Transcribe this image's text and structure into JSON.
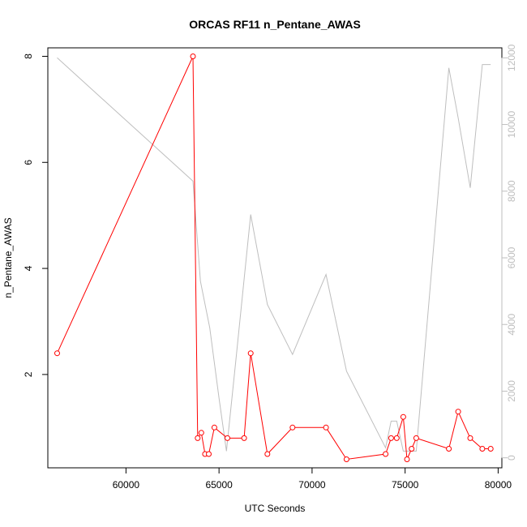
{
  "chart_data": {
    "type": "line",
    "title": "ORCAS RF11 n_Pentane_AWAS",
    "xlabel": "UTC Seconds",
    "ylabel": "n_Pentane_AWAS",
    "xlim": [
      55800,
      80200
    ],
    "ylim": [
      0.24,
      8.16
    ],
    "y2lim": [
      -300,
      12300
    ],
    "x_ticks": [
      60000,
      65000,
      70000,
      75000,
      80000
    ],
    "y_ticks": [
      2,
      4,
      6,
      8
    ],
    "y2_ticks": [
      0,
      2000,
      4000,
      6000,
      8000,
      10000,
      12000
    ],
    "grid": false,
    "series": [
      {
        "color": "#ff0000",
        "marker": "open-circle",
        "axis": "left",
        "x": [
          56300,
          63600,
          63850,
          64050,
          64250,
          64450,
          64750,
          65450,
          66350,
          66700,
          67600,
          68950,
          70750,
          71850,
          73950,
          74250,
          74550,
          74900,
          75100,
          75350,
          75600,
          77350,
          77850,
          78500,
          79150,
          79600
        ],
        "y": [
          2.4,
          8.0,
          0.8,
          0.9,
          0.5,
          0.5,
          1.0,
          0.8,
          0.8,
          2.4,
          0.5,
          1.0,
          1.0,
          0.4,
          0.5,
          0.8,
          0.8,
          1.2,
          0.4,
          0.6,
          0.8,
          0.6,
          1.3,
          0.8,
          0.6,
          0.6
        ]
      },
      {
        "color": "#bebebe",
        "marker": "none",
        "axis": "right",
        "x": [
          56300,
          63600,
          64000,
          64500,
          65000,
          65400,
          65900,
          66700,
          67600,
          68950,
          70750,
          71850,
          73950,
          74250,
          74550,
          74900,
          75100,
          75350,
          75600,
          77350,
          77850,
          78500,
          79150,
          79600
        ],
        "y": [
          12000,
          8300,
          5300,
          3900,
          1800,
          200,
          2900,
          7300,
          4600,
          3100,
          5500,
          2600,
          300,
          1100,
          1100,
          200,
          200,
          200,
          200,
          11700,
          10200,
          8100,
          11800,
          11800
        ]
      }
    ]
  }
}
